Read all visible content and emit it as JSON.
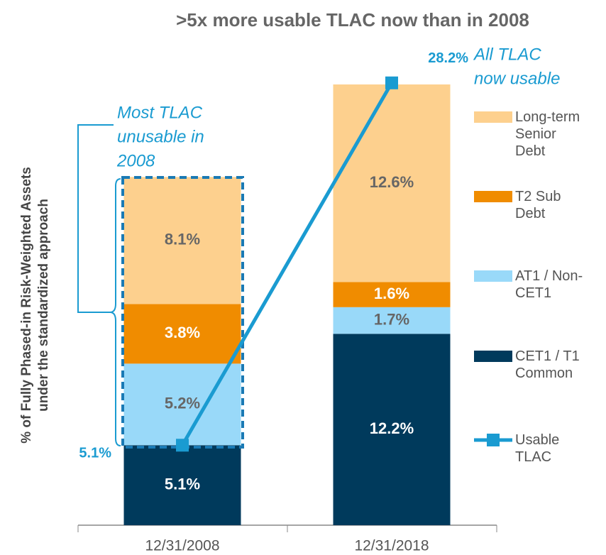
{
  "chart_data": {
    "type": "bar",
    "stacked": true,
    "title": ">5x more usable TLAC now than in 2008",
    "ylabel": [
      "% of Fully Phased-in Risk-Weighted Assets",
      "under the standardized approach"
    ],
    "categories": [
      "12/31/2008",
      "12/31/2018"
    ],
    "ylim": [
      0,
      30
    ],
    "series": [
      {
        "name": "CET1 / T1 Common",
        "color": "#003a5c",
        "values": [
          5.1,
          12.2
        ],
        "value_labels": [
          "5.1%",
          "12.2%"
        ]
      },
      {
        "name": "AT1 / Non-CET1",
        "color": "#99d9f9",
        "values": [
          5.2,
          1.7
        ],
        "value_labels": [
          "5.2%",
          "1.7%"
        ]
      },
      {
        "name": "T2 Sub Debt",
        "color": "#f08c00",
        "values": [
          3.8,
          1.6
        ],
        "value_labels": [
          "3.8%",
          "1.6%"
        ]
      },
      {
        "name": "Long-term Senior Debt",
        "color": "#fdd08e",
        "values": [
          8.1,
          12.6
        ],
        "value_labels": [
          "8.1%",
          "12.6%"
        ]
      },
      {
        "name": "Usable TLAC",
        "type": "line",
        "color": "#1a9bd1",
        "values": [
          5.1,
          28.2
        ],
        "value_labels": [
          "5.1%",
          "28.2%"
        ]
      }
    ],
    "annotations": [
      {
        "lines": [
          "Most TLAC",
          "unusable in",
          "2008"
        ]
      },
      {
        "lines": [
          "All TLAC",
          "now usable"
        ]
      }
    ]
  }
}
